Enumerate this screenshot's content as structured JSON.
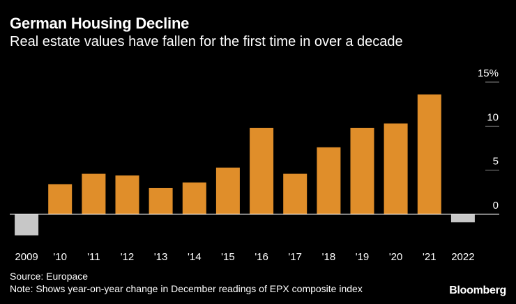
{
  "chart_data": {
    "type": "bar",
    "title": "German Housing Decline",
    "subtitle": "Real estate values have fallen for the first time in over a decade",
    "categories": [
      "2009",
      "'10",
      "'11",
      "'12",
      "'13",
      "'14",
      "'15",
      "'16",
      "'17",
      "'18",
      "'19",
      "'20",
      "'21",
      "2022"
    ],
    "values": [
      -2.4,
      3.4,
      4.6,
      4.4,
      3.0,
      3.6,
      5.3,
      9.8,
      4.6,
      7.6,
      9.8,
      10.3,
      13.6,
      -0.9
    ],
    "xlabel": "",
    "ylabel": "",
    "ylim": [
      -3,
      15
    ],
    "yticks": [
      0,
      5,
      10,
      15
    ],
    "ytick_labels": [
      "0",
      "5",
      "10",
      "15%"
    ],
    "grid": false,
    "colors": {
      "positive": "#e08e2a",
      "negative": "#c7c7c7",
      "axis": "#ffffff",
      "tick_line": "#888888"
    }
  },
  "source": "Source: Europace",
  "note": "Note: Shows year-on-year change in December readings of EPX composite index",
  "brand": "Bloomberg"
}
